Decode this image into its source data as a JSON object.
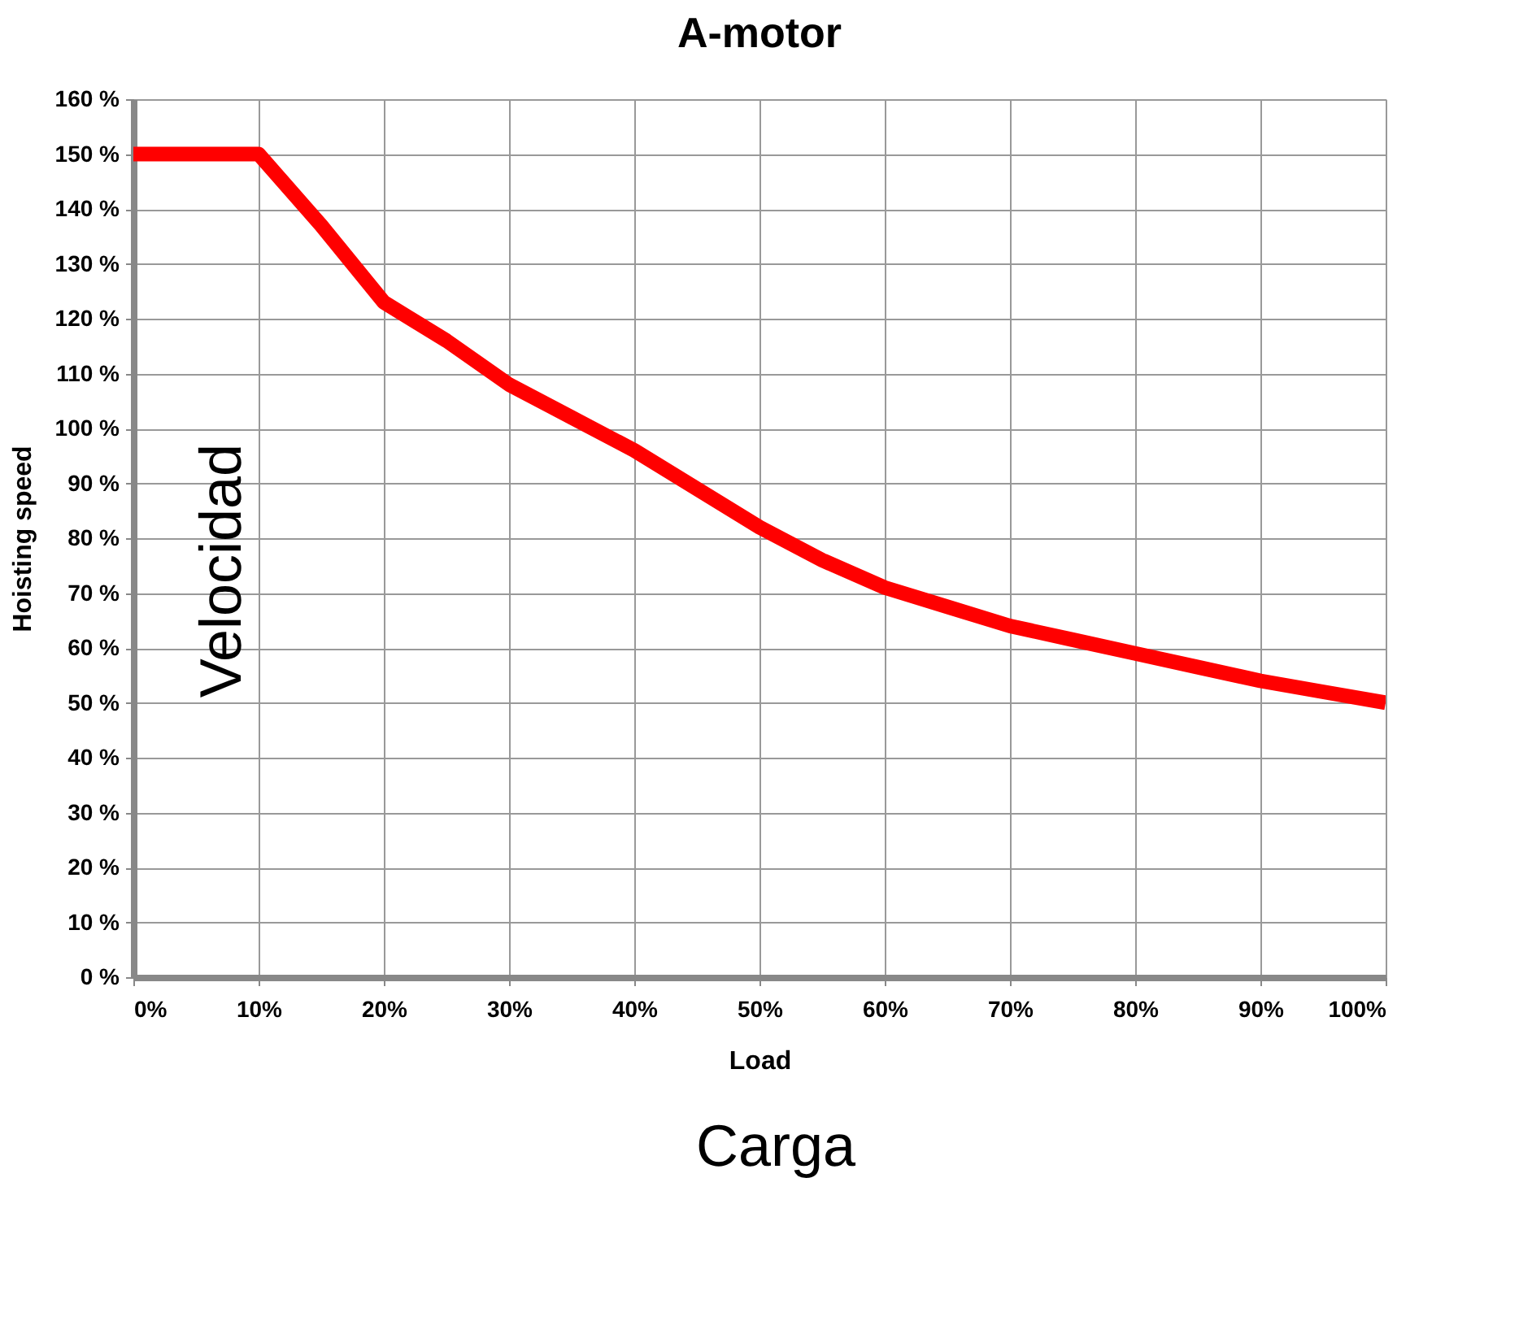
{
  "chart_data": {
    "type": "line",
    "title": "A-motor",
    "xlabel": "Load",
    "ylabel": "Hoisting speed",
    "annotations": [
      "Velocidad",
      "Carga"
    ],
    "x": [
      0,
      10,
      15,
      20,
      25,
      30,
      35,
      40,
      45,
      50,
      55,
      60,
      65,
      70,
      75,
      80,
      85,
      90,
      95,
      100
    ],
    "series": [
      {
        "color": "#ff0000",
        "values": [
          150,
          150,
          137,
          123,
          116,
          108,
          102,
          96,
          89,
          82,
          76,
          71,
          67.5,
          64,
          61.5,
          59,
          56.5,
          54,
          52,
          50
        ]
      }
    ],
    "xlim": [
      0,
      100
    ],
    "ylim": [
      0,
      160
    ],
    "xticks": [
      {
        "value": 0,
        "label": "0%"
      },
      {
        "value": 10,
        "label": "10%"
      },
      {
        "value": 20,
        "label": "20%"
      },
      {
        "value": 30,
        "label": "30%"
      },
      {
        "value": 40,
        "label": "40%"
      },
      {
        "value": 50,
        "label": "50%"
      },
      {
        "value": 60,
        "label": "60%"
      },
      {
        "value": 70,
        "label": "70%"
      },
      {
        "value": 80,
        "label": "80%"
      },
      {
        "value": 90,
        "label": "90%"
      },
      {
        "value": 100,
        "label": "100%"
      }
    ],
    "yticks": [
      {
        "value": 0,
        "label": "0 %"
      },
      {
        "value": 10,
        "label": "10 %"
      },
      {
        "value": 20,
        "label": "20 %"
      },
      {
        "value": 30,
        "label": "30 %"
      },
      {
        "value": 40,
        "label": "40 %"
      },
      {
        "value": 50,
        "label": "50 %"
      },
      {
        "value": 60,
        "label": "60 %"
      },
      {
        "value": 70,
        "label": "70 %"
      },
      {
        "value": 80,
        "label": "80 %"
      },
      {
        "value": 90,
        "label": "90 %"
      },
      {
        "value": 100,
        "label": "100 %"
      },
      {
        "value": 110,
        "label": "110 %"
      },
      {
        "value": 120,
        "label": "120 %"
      },
      {
        "value": 130,
        "label": "130 %"
      },
      {
        "value": 140,
        "label": "140 %"
      },
      {
        "value": 150,
        "label": "150 %"
      },
      {
        "value": 160,
        "label": "160 %"
      }
    ],
    "grid": true,
    "legend": false,
    "marker": "none",
    "line_style": "solid"
  }
}
